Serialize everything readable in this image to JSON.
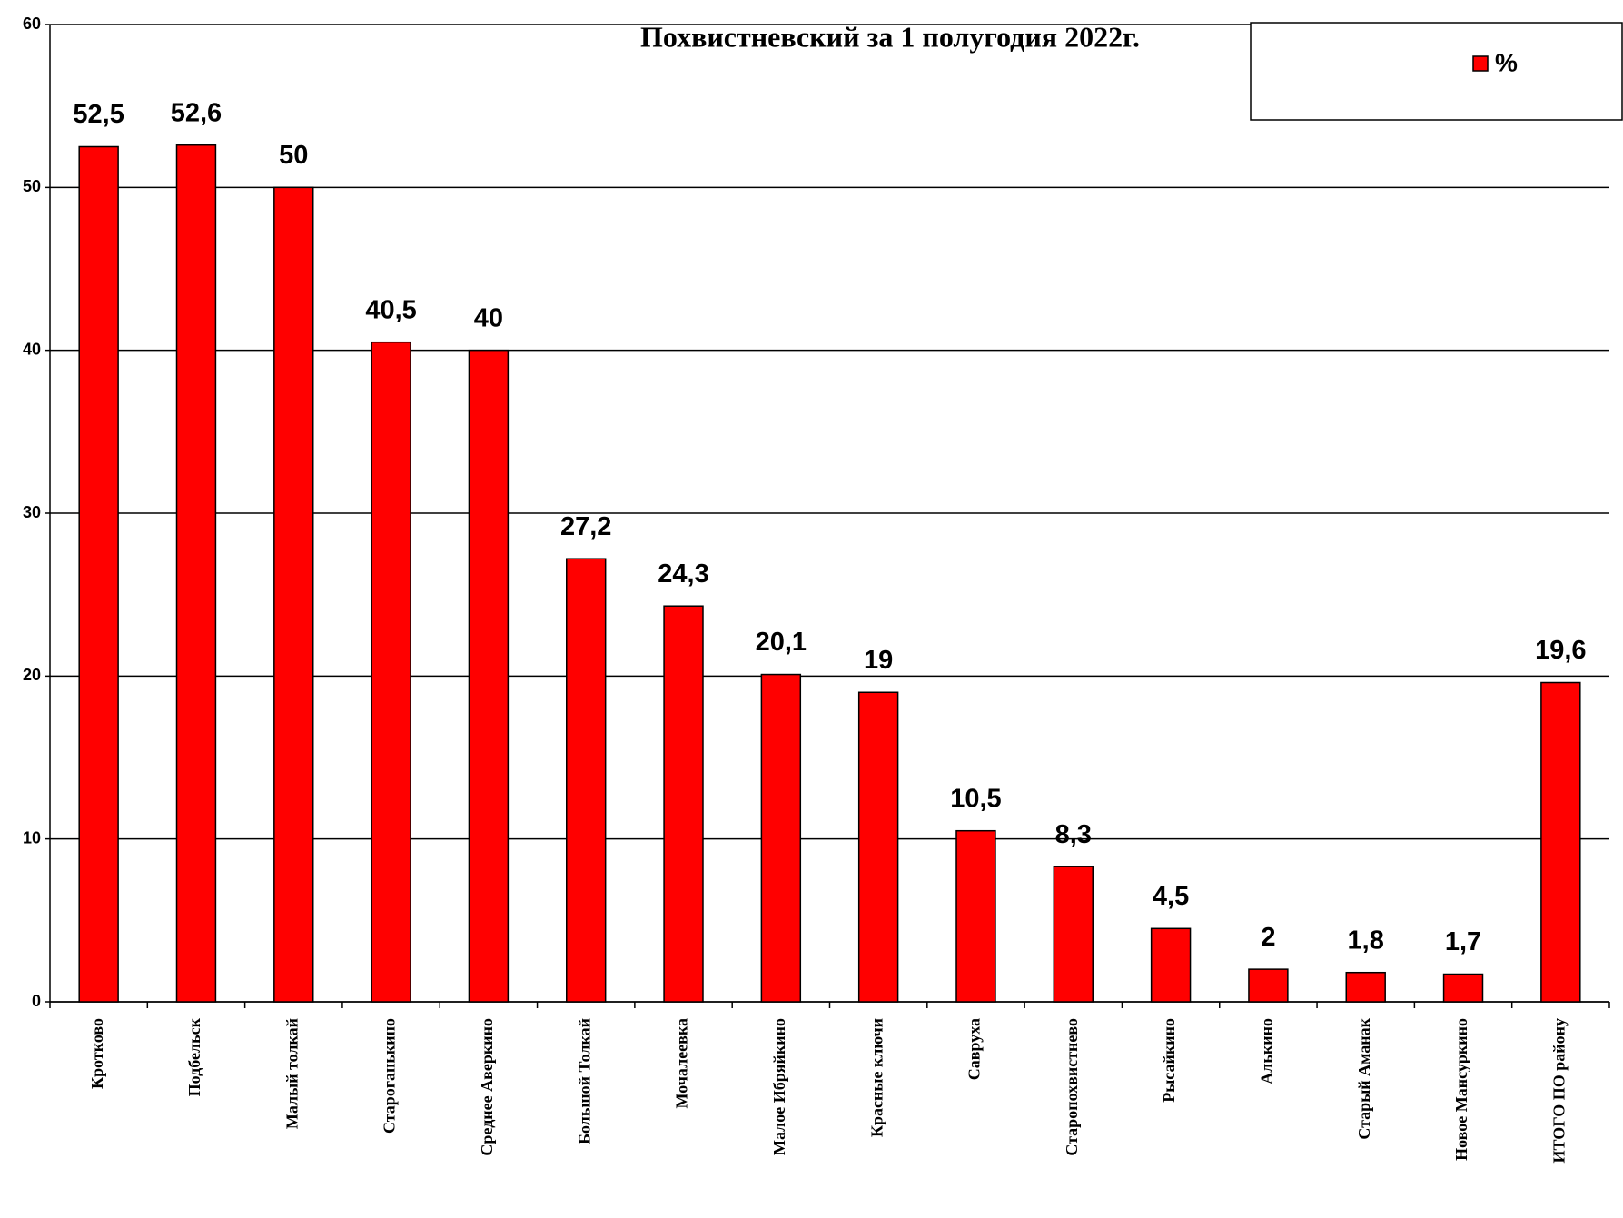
{
  "chart_data": {
    "type": "bar",
    "title": "Похвистневский за 1 полугодия 2022г.",
    "categories": [
      "Кротково",
      "Подбельск",
      "Малый толкай",
      "Староганькино",
      "Среднее Аверкино",
      "Большой Толкай",
      "Мочалеевка",
      "Малое Ибряйкино",
      "Красные ключи",
      "Савруха",
      "Старопохвистнево",
      "Рысайкино",
      "Алькино",
      "Старый Аманак",
      "Новое Мансуркино",
      "ИТОГО ПО району"
    ],
    "series": [
      {
        "name": "%",
        "color": "#ff0000",
        "values": [
          52.5,
          52.6,
          50,
          40.5,
          40,
          27.2,
          24.3,
          20.1,
          19,
          10.5,
          8.3,
          4.5,
          2,
          1.8,
          1.7,
          19.6
        ],
        "value_labels": [
          "52,5",
          "52,6",
          "50",
          "40,5",
          "40",
          "27,2",
          "24,3",
          "20,1",
          "19",
          "10,5",
          "8,3",
          "4,5",
          "2",
          "1,8",
          "1,7",
          "19,6"
        ]
      }
    ],
    "ylim": [
      0,
      60
    ],
    "yticks": [
      0,
      10,
      20,
      30,
      40,
      50,
      60
    ],
    "grid": true,
    "legend": "top-right"
  }
}
